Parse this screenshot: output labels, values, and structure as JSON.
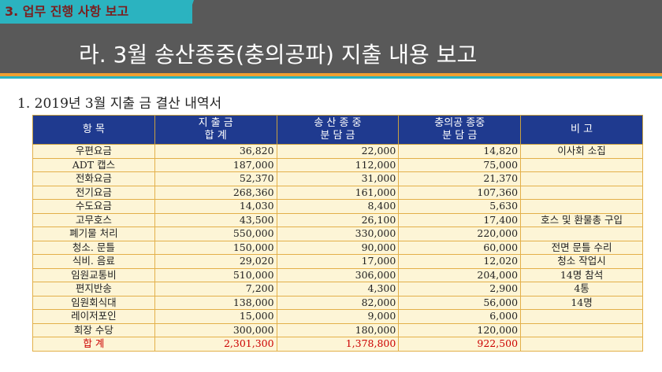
{
  "header": {
    "section_tag": "3. 업무 진행 사항 보고",
    "title": "라.  3월 송산종중(충의공파) 지출 내용 보고"
  },
  "subtitle": "1. 2019년 3월 지출 금 결산 내역서",
  "colors": {
    "header_bg": "#595959",
    "tag_bg": "#2bb3c0",
    "table_header_bg": "#1f3a8f",
    "cell_bg": "#fdf5d6",
    "total_text": "#cc0000"
  },
  "table": {
    "headers": [
      {
        "line1": "항 목",
        "line2": ""
      },
      {
        "line1": "지 출 금",
        "line2": "합 계"
      },
      {
        "line1": "송 산 종 중",
        "line2": "분 담 금"
      },
      {
        "line1": "충의공 종중",
        "line2": "분 담 금"
      },
      {
        "line1": "비 고",
        "line2": ""
      }
    ],
    "rows": [
      {
        "item": "우편요금",
        "total": "36,820",
        "songsan": "22,000",
        "chungui": "14,820",
        "note": "이사회 소집"
      },
      {
        "item": "ADT 캡스",
        "total": "187,000",
        "songsan": "112,000",
        "chungui": "75,000",
        "note": ""
      },
      {
        "item": "전화요금",
        "total": "52,370",
        "songsan": "31,000",
        "chungui": "21,370",
        "note": ""
      },
      {
        "item": "전기요금",
        "total": "268,360",
        "songsan": "161,000",
        "chungui": "107,360",
        "note": ""
      },
      {
        "item": "수도요금",
        "total": "14,030",
        "songsan": "8,400",
        "chungui": "5,630",
        "note": ""
      },
      {
        "item": "고무호스",
        "total": "43,500",
        "songsan": "26,100",
        "chungui": "17,400",
        "note": "호스 및 환물총 구입"
      },
      {
        "item": "폐기물 처리",
        "total": "550,000",
        "songsan": "330,000",
        "chungui": "220,000",
        "note": ""
      },
      {
        "item": "청소. 문틀",
        "total": "150,000",
        "songsan": "90,000",
        "chungui": "60,000",
        "note": "전면 문틀 수리"
      },
      {
        "item": "식비. 음료",
        "total": "29,020",
        "songsan": "17,000",
        "chungui": "12,020",
        "note": "청소 작업시"
      },
      {
        "item": "임원교통비",
        "total": "510,000",
        "songsan": "306,000",
        "chungui": "204,000",
        "note": "14명 참석"
      },
      {
        "item": "편지반송",
        "total": "7,200",
        "songsan": "4,300",
        "chungui": "2,900",
        "note": "4통"
      },
      {
        "item": "임원회식대",
        "total": "138,000",
        "songsan": "82,000",
        "chungui": "56,000",
        "note": "14명"
      },
      {
        "item": "레이저포인",
        "total": "15,000",
        "songsan": "9,000",
        "chungui": "6,000",
        "note": ""
      },
      {
        "item": "회장 수당",
        "total": "300,000",
        "songsan": "180,000",
        "chungui": "120,000",
        "note": ""
      }
    ],
    "total_row": {
      "item": "합 계",
      "total": "2,301,300",
      "songsan": "1,378,800",
      "chungui": "922,500",
      "note": ""
    }
  }
}
